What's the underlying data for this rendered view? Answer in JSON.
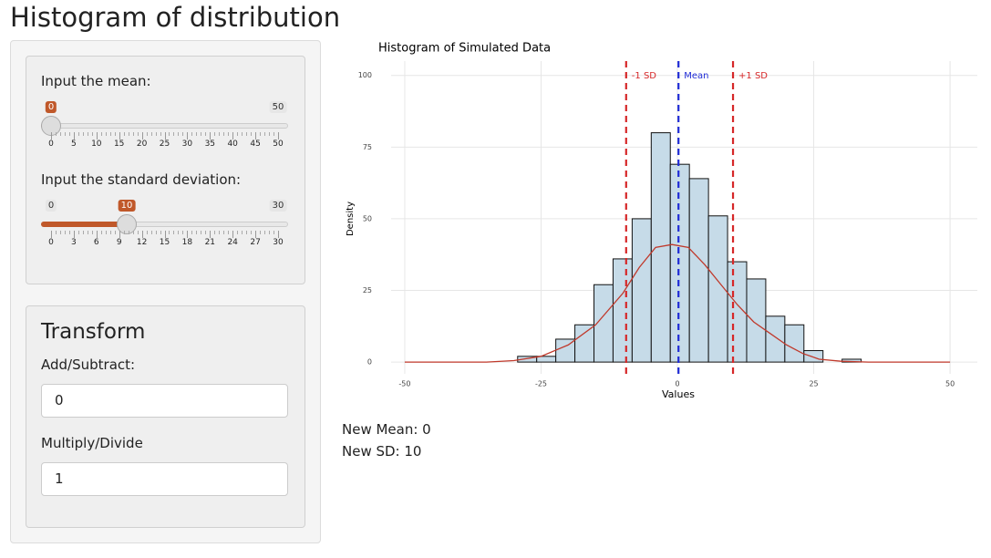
{
  "header": {
    "title": "Histogram of distribution"
  },
  "sidebar": {
    "mean_slider": {
      "label": "Input the mean:",
      "min": 0,
      "max": 50,
      "value": 0,
      "ticks": [
        0,
        5,
        10,
        15,
        20,
        25,
        30,
        35,
        40,
        45,
        50
      ]
    },
    "sd_slider": {
      "label": "Input the standard deviation:",
      "min": 0,
      "max": 30,
      "value": 10,
      "ticks": [
        0,
        3,
        6,
        9,
        12,
        15,
        18,
        21,
        24,
        27,
        30
      ]
    },
    "transform": {
      "title": "Transform",
      "add_label": "Add/Subtract:",
      "add_value": "0",
      "multiply_label": "Multiply/Divide",
      "multiply_value": "1"
    }
  },
  "chart_data": {
    "type": "histogram",
    "title": "Histogram of Simulated Data",
    "x_label": "Values",
    "y_label": "Density",
    "bins": [
      -29.3,
      -25.8,
      -22.3,
      -18.8,
      -15.3,
      -11.8,
      -8.3,
      -4.8,
      -1.3,
      2.2,
      5.7,
      9.2,
      12.7,
      16.2,
      19.7,
      23.2,
      26.7,
      30.2,
      33.7
    ],
    "values": [
      2,
      2,
      8,
      13,
      27,
      36,
      50,
      80,
      69,
      64,
      51,
      35,
      29,
      16,
      13,
      4,
      0,
      1
    ],
    "color": "#c6dbe8",
    "edge_color": "#111111",
    "xlim": [
      -52.5,
      55
    ],
    "ylim": [
      -4.1,
      105
    ],
    "xticks": [
      -50,
      -25,
      0,
      25,
      50
    ],
    "yticks": [
      0,
      25,
      50,
      75,
      100
    ],
    "grid": true,
    "density_curve": {
      "color": "#c0392b",
      "x": [
        -50,
        -35,
        -30,
        -25,
        -20,
        -15,
        -10,
        -7,
        -4,
        -1,
        2,
        5,
        8,
        11,
        14,
        17,
        20,
        23,
        26,
        30,
        35,
        50
      ],
      "y": [
        0,
        0,
        0.5,
        2,
        6,
        13,
        24,
        33,
        40,
        41,
        40,
        34,
        27,
        20,
        14,
        10,
        6,
        3,
        1,
        0.3,
        0,
        0
      ]
    },
    "vlines": [
      {
        "label": "-1 SD",
        "value": -9.4,
        "color": "#d62728"
      },
      {
        "label": "Mean",
        "value": 0.2,
        "color": "#1f2bd6"
      },
      {
        "label": "+1 SD",
        "value": 10.2,
        "color": "#d62728"
      }
    ]
  },
  "output": {
    "mean_text": "New Mean: 0",
    "sd_text": "New SD: 10"
  }
}
